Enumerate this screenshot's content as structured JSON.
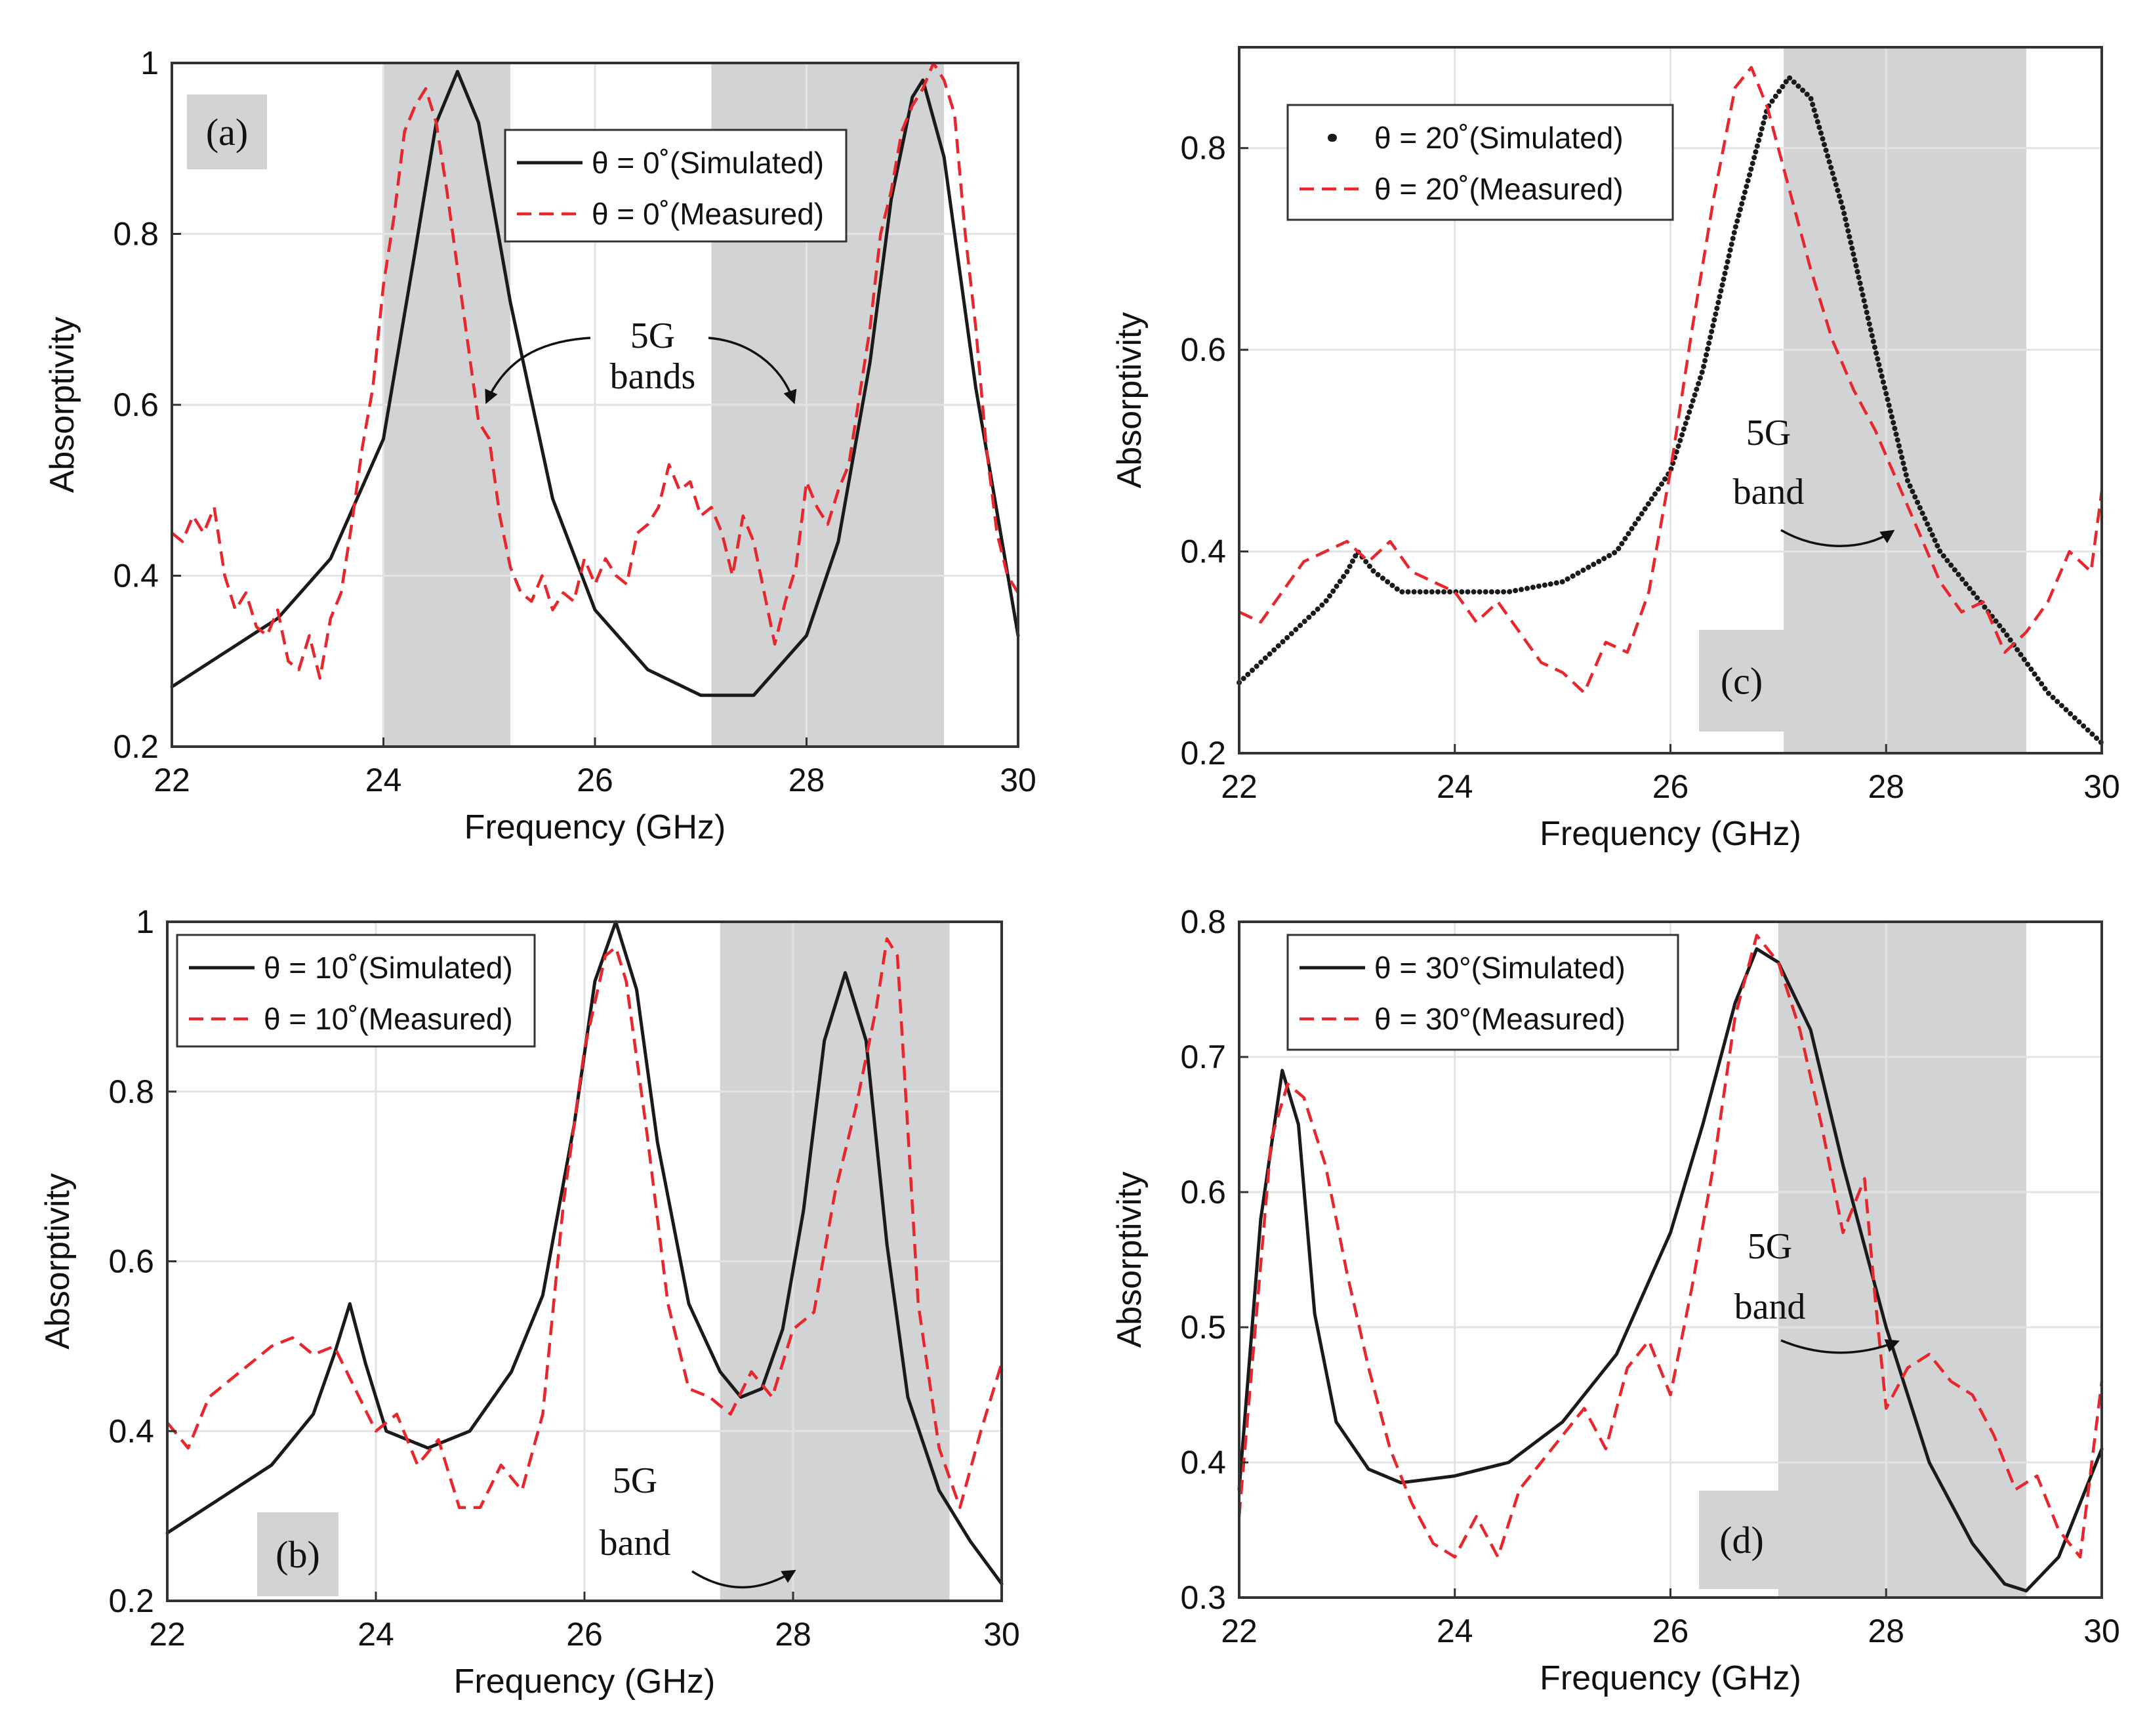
{
  "figure": {
    "panels": [
      {
        "id": "a",
        "tag": "(a)",
        "legend": [
          {
            "style": "solid",
            "label": "θ = 0˚(Simulated)"
          },
          {
            "style": "dashed",
            "label": "θ = 0˚(Measured)"
          }
        ],
        "annotation": {
          "line1": "5G",
          "line2": "bands"
        }
      },
      {
        "id": "b",
        "tag": "(b)",
        "legend": [
          {
            "style": "solid",
            "label": "θ = 10˚(Simulated)"
          },
          {
            "style": "dashed",
            "label": "θ = 10˚(Measured)"
          }
        ],
        "annotation": {
          "line1": "5G",
          "line2": "band"
        }
      },
      {
        "id": "c",
        "tag": "(c)",
        "legend": [
          {
            "style": "dotted",
            "label": "θ = 20˚(Simulated)"
          },
          {
            "style": "dashed",
            "label": "θ = 20˚(Measured)"
          }
        ],
        "annotation": {
          "line1": "5G",
          "line2": "band"
        }
      },
      {
        "id": "d",
        "tag": "(d)",
        "legend": [
          {
            "style": "solid",
            "label": "θ = 30°(Simulated)"
          },
          {
            "style": "dashed",
            "label": "θ = 30°(Measured)"
          }
        ],
        "annotation": {
          "line1": "5G",
          "line2": "band"
        }
      }
    ]
  },
  "chart_data": [
    {
      "panel": "a",
      "type": "line",
      "xlabel": "Frequency (GHz)",
      "ylabel": "Absorptivity",
      "xlim": [
        22,
        30
      ],
      "ylim": [
        0.2,
        1.0
      ],
      "xticks": [
        "22",
        "24",
        "26",
        "28",
        "30"
      ],
      "yticks": [
        "0.2",
        "0.4",
        "0.6",
        "0.8",
        "1"
      ],
      "grid": true,
      "shaded_bands": [
        [
          24.0,
          25.2
        ],
        [
          27.1,
          29.3
        ]
      ],
      "series": [
        {
          "name": "θ = 0˚(Simulated)",
          "style": "solid",
          "color": "#1a1a1a",
          "x": [
            22.0,
            22.5,
            23.0,
            23.5,
            24.0,
            24.3,
            24.5,
            24.7,
            24.9,
            25.2,
            25.6,
            26.0,
            26.5,
            27.0,
            27.5,
            28.0,
            28.3,
            28.6,
            28.8,
            29.0,
            29.1,
            29.3,
            29.6,
            30.0
          ],
          "y": [
            0.27,
            0.31,
            0.35,
            0.42,
            0.56,
            0.78,
            0.93,
            0.99,
            0.93,
            0.72,
            0.49,
            0.36,
            0.29,
            0.26,
            0.26,
            0.33,
            0.44,
            0.65,
            0.84,
            0.96,
            0.98,
            0.89,
            0.62,
            0.33
          ]
        },
        {
          "name": "θ = 0˚(Measured)",
          "style": "dashed",
          "color": "#e8262b",
          "x": [
            22.0,
            22.1,
            22.2,
            22.3,
            22.4,
            22.5,
            22.6,
            22.7,
            22.8,
            22.9,
            23.0,
            23.1,
            23.2,
            23.3,
            23.4,
            23.5,
            23.6,
            23.7,
            23.8,
            23.9,
            24.0,
            24.1,
            24.2,
            24.3,
            24.4,
            24.5,
            24.6,
            24.7,
            24.8,
            24.9,
            25.0,
            25.1,
            25.2,
            25.3,
            25.4,
            25.5,
            25.6,
            25.7,
            25.8,
            25.9,
            26.0,
            26.1,
            26.2,
            26.3,
            26.4,
            26.5,
            26.6,
            26.7,
            26.8,
            26.9,
            27.0,
            27.1,
            27.2,
            27.3,
            27.4,
            27.5,
            27.6,
            27.7,
            27.8,
            27.9,
            28.0,
            28.1,
            28.2,
            28.3,
            28.4,
            28.5,
            28.6,
            28.7,
            28.8,
            28.9,
            29.0,
            29.1,
            29.2,
            29.3,
            29.4,
            29.5,
            29.6,
            29.7,
            29.8,
            29.9,
            30.0
          ],
          "y": [
            0.45,
            0.44,
            0.47,
            0.45,
            0.48,
            0.4,
            0.36,
            0.38,
            0.34,
            0.33,
            0.36,
            0.3,
            0.29,
            0.33,
            0.28,
            0.35,
            0.38,
            0.46,
            0.55,
            0.62,
            0.74,
            0.82,
            0.92,
            0.95,
            0.97,
            0.93,
            0.85,
            0.76,
            0.67,
            0.58,
            0.56,
            0.47,
            0.41,
            0.38,
            0.37,
            0.4,
            0.36,
            0.38,
            0.37,
            0.42,
            0.39,
            0.42,
            0.4,
            0.39,
            0.45,
            0.46,
            0.48,
            0.53,
            0.5,
            0.51,
            0.47,
            0.48,
            0.45,
            0.4,
            0.47,
            0.44,
            0.38,
            0.32,
            0.37,
            0.41,
            0.51,
            0.48,
            0.46,
            0.5,
            0.53,
            0.61,
            0.69,
            0.8,
            0.85,
            0.92,
            0.95,
            0.97,
            1.0,
            0.98,
            0.94,
            0.8,
            0.69,
            0.55,
            0.45,
            0.4,
            0.38
          ]
        }
      ]
    },
    {
      "panel": "b",
      "type": "line",
      "xlabel": "Frequency (GHz)",
      "ylabel": "Absorptivity",
      "xlim": [
        22,
        30
      ],
      "ylim": [
        0.2,
        1.0
      ],
      "xticks": [
        "22",
        "24",
        "26",
        "28",
        "30"
      ],
      "yticks": [
        "0.2",
        "0.4",
        "0.6",
        "0.8",
        "1"
      ],
      "grid": true,
      "shaded_bands": [
        [
          27.3,
          29.5
        ]
      ],
      "series": [
        {
          "name": "θ = 10˚(Simulated)",
          "style": "solid",
          "color": "#1a1a1a",
          "x": [
            22.0,
            22.5,
            23.0,
            23.4,
            23.6,
            23.75,
            23.9,
            24.1,
            24.5,
            24.9,
            25.3,
            25.6,
            25.9,
            26.1,
            26.3,
            26.5,
            26.7,
            27.0,
            27.3,
            27.5,
            27.7,
            27.9,
            28.1,
            28.3,
            28.5,
            28.7,
            28.9,
            29.1,
            29.4,
            29.7,
            30.0
          ],
          "y": [
            0.28,
            0.32,
            0.36,
            0.42,
            0.49,
            0.55,
            0.48,
            0.4,
            0.38,
            0.4,
            0.47,
            0.56,
            0.76,
            0.93,
            1.0,
            0.92,
            0.74,
            0.55,
            0.47,
            0.44,
            0.45,
            0.52,
            0.66,
            0.86,
            0.94,
            0.86,
            0.62,
            0.44,
            0.33,
            0.27,
            0.22
          ]
        },
        {
          "name": "θ = 10˚(Measured)",
          "style": "dashed",
          "color": "#e8262b",
          "x": [
            22.0,
            22.2,
            22.4,
            22.6,
            22.8,
            23.0,
            23.2,
            23.4,
            23.6,
            23.8,
            24.0,
            24.2,
            24.4,
            24.6,
            24.8,
            25.0,
            25.2,
            25.4,
            25.6,
            25.8,
            26.0,
            26.2,
            26.3,
            26.4,
            26.6,
            26.8,
            27.0,
            27.2,
            27.4,
            27.6,
            27.8,
            28.0,
            28.2,
            28.4,
            28.6,
            28.8,
            28.9,
            29.0,
            29.2,
            29.4,
            29.6,
            29.8,
            30.0
          ],
          "y": [
            0.41,
            0.38,
            0.44,
            0.46,
            0.48,
            0.5,
            0.51,
            0.49,
            0.5,
            0.45,
            0.4,
            0.42,
            0.36,
            0.39,
            0.31,
            0.31,
            0.36,
            0.33,
            0.42,
            0.67,
            0.85,
            0.96,
            0.97,
            0.93,
            0.75,
            0.55,
            0.45,
            0.44,
            0.42,
            0.47,
            0.44,
            0.52,
            0.54,
            0.68,
            0.78,
            0.9,
            0.98,
            0.96,
            0.55,
            0.38,
            0.31,
            0.4,
            0.48
          ]
        }
      ]
    },
    {
      "panel": "c",
      "type": "line",
      "xlabel": "Frequency (GHz)",
      "ylabel": "Absorptivity",
      "xlim": [
        22,
        30
      ],
      "ylim": [
        0.2,
        0.9
      ],
      "xticks": [
        "22",
        "24",
        "26",
        "28",
        "30"
      ],
      "yticks": [
        "0.2",
        "0.4",
        "0.6",
        "0.8"
      ],
      "grid": true,
      "shaded_bands": [
        [
          27.05,
          29.3
        ]
      ],
      "series": [
        {
          "name": "θ = 20˚(Simulated)",
          "style": "dotted",
          "color": "#1a1a1a",
          "x": [
            22.0,
            22.4,
            22.8,
            23.0,
            23.1,
            23.25,
            23.5,
            24.0,
            24.5,
            25.0,
            25.5,
            26.0,
            26.3,
            26.6,
            26.9,
            27.1,
            27.3,
            27.6,
            27.9,
            28.2,
            28.5,
            28.8,
            29.1,
            29.5,
            30.0
          ],
          "y": [
            0.27,
            0.31,
            0.35,
            0.38,
            0.4,
            0.38,
            0.36,
            0.36,
            0.36,
            0.37,
            0.4,
            0.48,
            0.58,
            0.72,
            0.84,
            0.87,
            0.85,
            0.74,
            0.6,
            0.47,
            0.4,
            0.36,
            0.32,
            0.26,
            0.21
          ]
        },
        {
          "name": "θ = 20˚(Measured)",
          "style": "dashed",
          "color": "#e8262b",
          "x": [
            22.0,
            22.2,
            22.4,
            22.6,
            22.8,
            23.0,
            23.2,
            23.4,
            23.6,
            23.8,
            24.0,
            24.2,
            24.4,
            24.6,
            24.8,
            25.0,
            25.2,
            25.4,
            25.6,
            25.8,
            26.0,
            26.2,
            26.4,
            26.6,
            26.75,
            26.9,
            27.1,
            27.3,
            27.5,
            27.7,
            27.9,
            28.1,
            28.3,
            28.5,
            28.7,
            28.9,
            29.1,
            29.3,
            29.5,
            29.7,
            29.9,
            30.0
          ],
          "y": [
            0.34,
            0.33,
            0.36,
            0.39,
            0.4,
            0.41,
            0.39,
            0.41,
            0.38,
            0.37,
            0.36,
            0.33,
            0.35,
            0.32,
            0.29,
            0.28,
            0.26,
            0.31,
            0.3,
            0.36,
            0.48,
            0.62,
            0.75,
            0.86,
            0.88,
            0.84,
            0.76,
            0.68,
            0.61,
            0.56,
            0.52,
            0.47,
            0.42,
            0.37,
            0.34,
            0.35,
            0.3,
            0.32,
            0.35,
            0.4,
            0.38,
            0.46
          ]
        }
      ]
    },
    {
      "panel": "d",
      "type": "line",
      "xlabel": "Frequency (GHz)",
      "ylabel": "Absorptivity",
      "xlim": [
        22,
        30
      ],
      "ylim": [
        0.3,
        0.8
      ],
      "xticks": [
        "22",
        "24",
        "26",
        "28",
        "30"
      ],
      "yticks": [
        "0.3",
        "0.4",
        "0.5",
        "0.6",
        "0.7",
        "0.8"
      ],
      "grid": true,
      "shaded_bands": [
        [
          27.0,
          29.3
        ]
      ],
      "series": [
        {
          "name": "θ = 30°(Simulated)",
          "style": "solid",
          "color": "#1a1a1a",
          "x": [
            22.0,
            22.2,
            22.4,
            22.55,
            22.7,
            22.9,
            23.2,
            23.5,
            24.0,
            24.5,
            25.0,
            25.5,
            26.0,
            26.3,
            26.6,
            26.8,
            27.0,
            27.3,
            27.6,
            28.0,
            28.4,
            28.8,
            29.1,
            29.3,
            29.6,
            30.0
          ],
          "y": [
            0.38,
            0.58,
            0.69,
            0.65,
            0.51,
            0.43,
            0.395,
            0.385,
            0.39,
            0.4,
            0.43,
            0.48,
            0.57,
            0.65,
            0.74,
            0.78,
            0.77,
            0.72,
            0.62,
            0.5,
            0.4,
            0.34,
            0.31,
            0.305,
            0.33,
            0.41
          ]
        },
        {
          "name": "θ = 30°(Measured)",
          "style": "dashed",
          "color": "#e8262b",
          "x": [
            22.0,
            22.15,
            22.3,
            22.45,
            22.6,
            22.8,
            23.0,
            23.2,
            23.4,
            23.6,
            23.8,
            24.0,
            24.2,
            24.4,
            24.6,
            24.8,
            25.0,
            25.2,
            25.4,
            25.6,
            25.8,
            26.0,
            26.2,
            26.4,
            26.6,
            26.8,
            27.0,
            27.2,
            27.4,
            27.6,
            27.8,
            27.9,
            28.0,
            28.2,
            28.4,
            28.6,
            28.8,
            29.0,
            29.2,
            29.4,
            29.6,
            29.8,
            30.0
          ],
          "y": [
            0.36,
            0.5,
            0.64,
            0.68,
            0.67,
            0.62,
            0.54,
            0.47,
            0.41,
            0.37,
            0.34,
            0.33,
            0.36,
            0.33,
            0.38,
            0.4,
            0.42,
            0.44,
            0.41,
            0.47,
            0.49,
            0.45,
            0.53,
            0.62,
            0.73,
            0.79,
            0.77,
            0.72,
            0.65,
            0.57,
            0.61,
            0.52,
            0.44,
            0.47,
            0.48,
            0.46,
            0.45,
            0.42,
            0.38,
            0.39,
            0.35,
            0.33,
            0.46
          ]
        }
      ]
    }
  ]
}
